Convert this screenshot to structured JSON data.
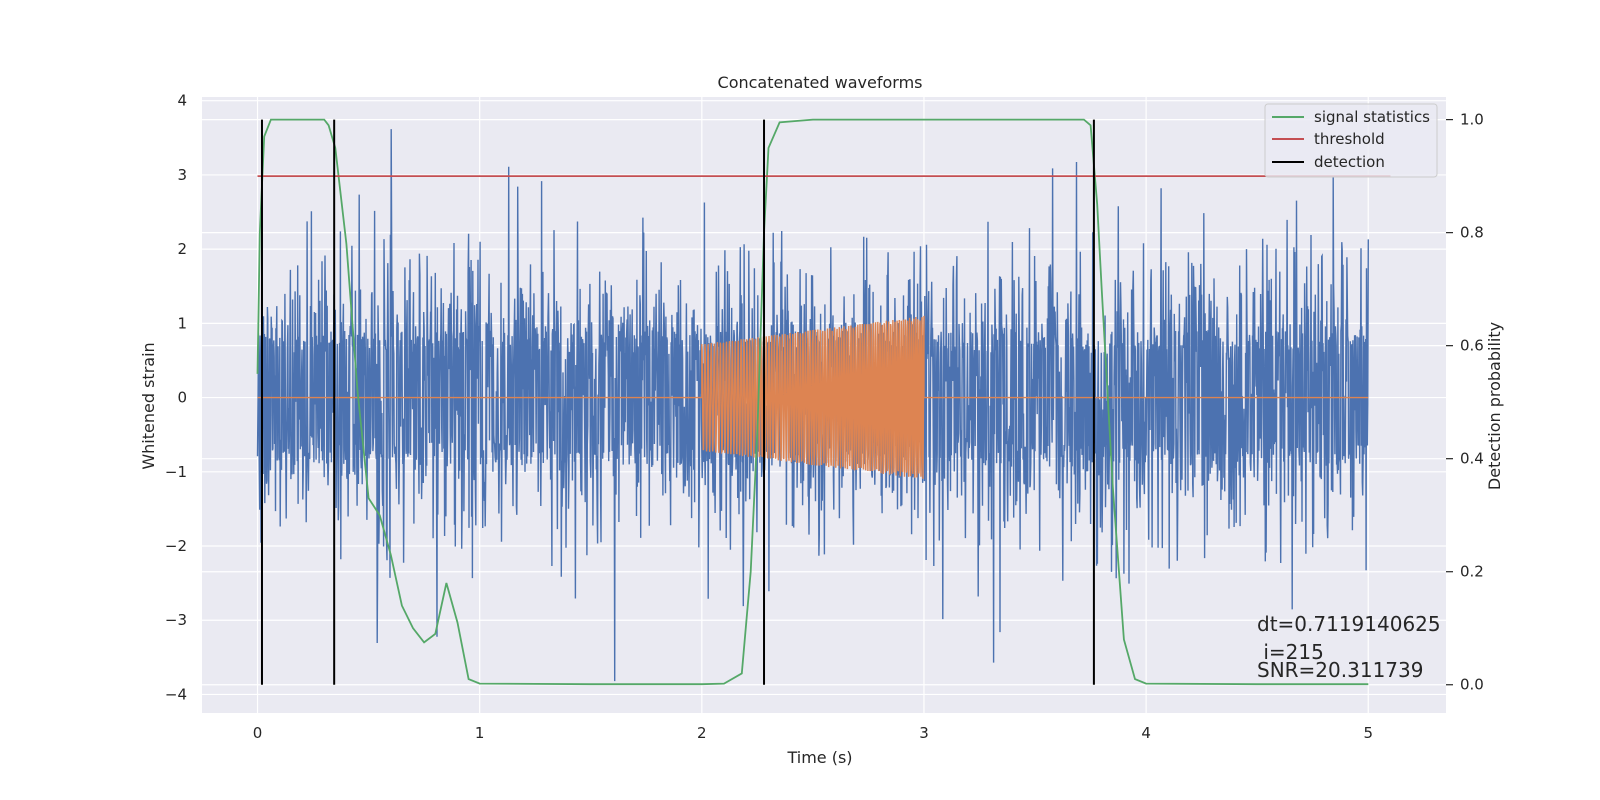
{
  "chart_data": {
    "type": "line",
    "title": "Concatenated waveforms",
    "xlabel": "Time (s)",
    "ylabel": "Whitened strain",
    "ylabel_right": "Detection probability",
    "xlim": [
      -0.25,
      5.35
    ],
    "ylim": [
      -4.25,
      4.05
    ],
    "ylim_right": [
      -0.05,
      1.04
    ],
    "x_ticks": [
      0,
      1,
      2,
      3,
      4,
      5
    ],
    "y_ticks": [
      -4,
      -3,
      -2,
      -1,
      0,
      1,
      2,
      3,
      4
    ],
    "y_ticks_right": [
      0.0,
      0.2,
      0.4,
      0.6,
      0.8,
      1.0
    ],
    "y_tick_labels_right": [
      "0.0",
      "0.2",
      "0.4",
      "0.6",
      "0.8",
      "1.0"
    ],
    "grid": true,
    "legend_position": "top-right",
    "legend": [
      {
        "label": "signal statistics",
        "color": "#55a868"
      },
      {
        "label": "threshold",
        "color": "#c44e52"
      },
      {
        "label": "detection",
        "color": "#000000"
      }
    ],
    "series": [
      {
        "kind": "noise",
        "color": "#4c72b0",
        "x_range": [
          0,
          5
        ],
        "band_amplitude": 0.85,
        "typical_peak": 2.5,
        "max_peak": 3.7,
        "min_peak": -3.9
      },
      {
        "kind": "injected_signal",
        "color": "#dd8452",
        "x_range": [
          0,
          5
        ],
        "chirp_range": [
          2.0,
          3.0
        ],
        "amplitude_start": 0.72,
        "amplitude_end": 1.1
      },
      {
        "name": "signal statistics",
        "axis": "right",
        "color": "#55a868",
        "x": [
          0.0,
          0.01,
          0.03,
          0.06,
          0.1,
          0.2,
          0.3,
          0.32,
          0.35,
          0.4,
          0.45,
          0.5,
          0.55,
          0.6,
          0.65,
          0.7,
          0.75,
          0.8,
          0.85,
          0.9,
          0.95,
          1.0,
          1.5,
          2.0,
          2.1,
          2.18,
          2.22,
          2.25,
          2.28,
          2.3,
          2.35,
          2.5,
          3.0,
          3.5,
          3.72,
          3.75,
          3.78,
          3.8,
          3.85,
          3.9,
          3.95,
          4.0,
          4.5,
          5.0
        ],
        "y": [
          0.55,
          0.8,
          0.97,
          1.0,
          1.0,
          1.0,
          1.0,
          0.99,
          0.95,
          0.78,
          0.52,
          0.33,
          0.3,
          0.23,
          0.14,
          0.1,
          0.075,
          0.09,
          0.18,
          0.11,
          0.01,
          0.002,
          0.001,
          0.001,
          0.002,
          0.02,
          0.2,
          0.45,
          0.8,
          0.95,
          0.995,
          1.0,
          1.0,
          1.0,
          1.0,
          0.99,
          0.85,
          0.7,
          0.35,
          0.08,
          0.01,
          0.002,
          0.001,
          0.001
        ]
      },
      {
        "name": "threshold",
        "axis": "right",
        "color": "#c44e52",
        "x": [
          0.0,
          5.1
        ],
        "y": [
          0.9,
          0.9
        ]
      }
    ],
    "detections": [
      {
        "x": 0.02
      },
      {
        "x": 0.345
      },
      {
        "x": 2.28
      },
      {
        "x": 3.765
      }
    ],
    "detection_range_right": [
      0.0,
      1.0
    ],
    "annotations": [
      "dt=0.7119140625",
      " i=215",
      "SNR=20.311739"
    ]
  }
}
